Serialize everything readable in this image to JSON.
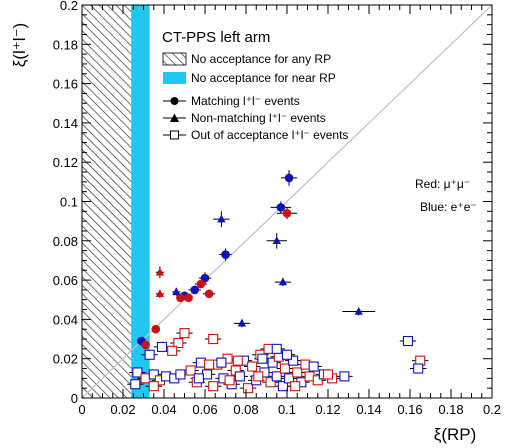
{
  "chart_data": {
    "type": "scatter",
    "title": "CT-PPS left arm",
    "xlabel": "ξ(RP)",
    "ylabel": "ξ(l⁺l⁻)",
    "xlim": [
      0,
      0.2
    ],
    "ylim": [
      0,
      0.2
    ],
    "x_ticks": [
      "0",
      "0.02",
      "0.04",
      "0.06",
      "0.08",
      "0.1",
      "0.12",
      "0.14",
      "0.16",
      "0.18",
      "0.2"
    ],
    "y_ticks": [
      "0",
      "0.02",
      "0.04",
      "0.06",
      "0.08",
      "0.1",
      "0.12",
      "0.14",
      "0.16",
      "0.18",
      "0.2"
    ],
    "grid": false,
    "diagonal_reference": true,
    "bands": [
      {
        "label": "No acceptance for any RP",
        "x_range": [
          0,
          0.024
        ],
        "style": "hatched"
      },
      {
        "label": "No acceptance for near RP",
        "x_range": [
          0.024,
          0.033
        ],
        "style": "filled",
        "color": "#1ec8f0"
      }
    ],
    "legend": {
      "position": "top-left",
      "entries": [
        {
          "label": "No acceptance for any RP",
          "marker": "hatch"
        },
        {
          "label": "No acceptance for near RP",
          "marker": "cyan-box"
        },
        {
          "label": "Matching l⁺l⁻ events",
          "marker": "circle"
        },
        {
          "label": "Non-matching l⁺l⁻ events",
          "marker": "triangle"
        },
        {
          "label": "Out of acceptance l⁺l⁻ events",
          "marker": "open-square"
        }
      ]
    },
    "annotations": {
      "red": "Red: μ⁺μ⁻",
      "blue": "Blue: e⁺e⁻"
    },
    "colors": {
      "red": "#cc1111",
      "blue": "#1111bb",
      "cyan": "#1ec8f0",
      "diagonal": "#c0c0c0"
    },
    "series": [
      {
        "name": "Matching l⁺l⁻ events",
        "marker": "circle",
        "points": [
          {
            "x": 0.101,
            "y": 0.112,
            "ex": 0.004,
            "ey": 0.004,
            "c": "blue"
          },
          {
            "x": 0.097,
            "y": 0.097,
            "ex": 0.005,
            "ey": 0.003,
            "c": "blue"
          },
          {
            "x": 0.1,
            "y": 0.094,
            "ex": 0.005,
            "ey": 0.003,
            "c": "red"
          },
          {
            "x": 0.07,
            "y": 0.073,
            "ex": 0.003,
            "ey": 0.003,
            "c": "blue"
          },
          {
            "x": 0.06,
            "y": 0.061,
            "ex": 0.003,
            "ey": 0.003,
            "c": "blue"
          },
          {
            "x": 0.062,
            "y": 0.053,
            "ex": 0.003,
            "ey": 0.002,
            "c": "red"
          },
          {
            "x": 0.055,
            "y": 0.055,
            "ex": 0.003,
            "ey": 0.002,
            "c": "blue"
          },
          {
            "x": 0.058,
            "y": 0.058,
            "ex": 0.003,
            "ey": 0.002,
            "c": "red"
          },
          {
            "x": 0.05,
            "y": 0.052,
            "ex": 0.002,
            "ey": 0.002,
            "c": "blue"
          },
          {
            "x": 0.048,
            "y": 0.051,
            "ex": 0.002,
            "ey": 0.002,
            "c": "red"
          },
          {
            "x": 0.052,
            "y": 0.051,
            "ex": 0.002,
            "ey": 0.002,
            "c": "red"
          },
          {
            "x": 0.036,
            "y": 0.035,
            "ex": 0.002,
            "ey": 0.002,
            "c": "red"
          },
          {
            "x": 0.029,
            "y": 0.029,
            "ex": 0.002,
            "ey": 0.002,
            "c": "blue"
          },
          {
            "x": 0.031,
            "y": 0.027,
            "ex": 0.002,
            "ey": 0.002,
            "c": "red"
          }
        ]
      },
      {
        "name": "Non-matching l⁺l⁻ events",
        "marker": "triangle",
        "points": [
          {
            "x": 0.068,
            "y": 0.091,
            "ex": 0.004,
            "ey": 0.004,
            "c": "blue"
          },
          {
            "x": 0.095,
            "y": 0.08,
            "ex": 0.005,
            "ey": 0.004,
            "c": "blue"
          },
          {
            "x": 0.038,
            "y": 0.064,
            "ex": 0.002,
            "ey": 0.003,
            "c": "red"
          },
          {
            "x": 0.038,
            "y": 0.053,
            "ex": 0.002,
            "ey": 0.002,
            "c": "red"
          },
          {
            "x": 0.046,
            "y": 0.054,
            "ex": 0.002,
            "ey": 0.002,
            "c": "blue"
          },
          {
            "x": 0.098,
            "y": 0.059,
            "ex": 0.004,
            "ey": 0.002,
            "c": "blue"
          },
          {
            "x": 0.078,
            "y": 0.038,
            "ex": 0.004,
            "ey": 0.002,
            "c": "blue"
          },
          {
            "x": 0.135,
            "y": 0.044,
            "ex": 0.008,
            "ey": 0.002,
            "c": "blue"
          }
        ]
      },
      {
        "name": "Out of acceptance l⁺l⁻ events",
        "marker": "open-square",
        "points": [
          {
            "x": 0.033,
            "y": 0.022,
            "c": "blue"
          },
          {
            "x": 0.039,
            "y": 0.026,
            "c": "blue"
          },
          {
            "x": 0.047,
            "y": 0.028,
            "c": "red"
          },
          {
            "x": 0.044,
            "y": 0.024,
            "c": "red"
          },
          {
            "x": 0.05,
            "y": 0.033,
            "c": "red"
          },
          {
            "x": 0.064,
            "y": 0.03,
            "c": "red"
          },
          {
            "x": 0.027,
            "y": 0.013,
            "c": "blue"
          },
          {
            "x": 0.031,
            "y": 0.01,
            "c": "red"
          },
          {
            "x": 0.035,
            "y": 0.012,
            "c": "blue"
          },
          {
            "x": 0.038,
            "y": 0.009,
            "c": "red"
          },
          {
            "x": 0.041,
            "y": 0.011,
            "c": "blue"
          },
          {
            "x": 0.045,
            "y": 0.01,
            "c": "blue"
          },
          {
            "x": 0.026,
            "y": 0.007,
            "c": "blue"
          },
          {
            "x": 0.035,
            "y": 0.006,
            "c": "red"
          },
          {
            "x": 0.048,
            "y": 0.012,
            "c": "blue"
          },
          {
            "x": 0.053,
            "y": 0.014,
            "c": "red"
          },
          {
            "x": 0.056,
            "y": 0.008,
            "c": "red"
          },
          {
            "x": 0.058,
            "y": 0.018,
            "c": "blue"
          },
          {
            "x": 0.061,
            "y": 0.012,
            "c": "blue"
          },
          {
            "x": 0.064,
            "y": 0.006,
            "c": "red"
          },
          {
            "x": 0.066,
            "y": 0.017,
            "c": "red"
          },
          {
            "x": 0.069,
            "y": 0.01,
            "c": "blue"
          },
          {
            "x": 0.071,
            "y": 0.02,
            "c": "red"
          },
          {
            "x": 0.073,
            "y": 0.007,
            "c": "blue"
          },
          {
            "x": 0.075,
            "y": 0.014,
            "c": "red"
          },
          {
            "x": 0.077,
            "y": 0.011,
            "c": "blue"
          },
          {
            "x": 0.079,
            "y": 0.019,
            "c": "blue"
          },
          {
            "x": 0.081,
            "y": 0.005,
            "c": "red"
          },
          {
            "x": 0.083,
            "y": 0.016,
            "c": "red"
          },
          {
            "x": 0.085,
            "y": 0.009,
            "c": "blue"
          },
          {
            "x": 0.087,
            "y": 0.022,
            "c": "red"
          },
          {
            "x": 0.089,
            "y": 0.013,
            "c": "blue"
          },
          {
            "x": 0.091,
            "y": 0.025,
            "c": "red"
          },
          {
            "x": 0.092,
            "y": 0.008,
            "c": "red"
          },
          {
            "x": 0.093,
            "y": 0.018,
            "c": "blue"
          },
          {
            "x": 0.095,
            "y": 0.011,
            "c": "blue"
          },
          {
            "x": 0.096,
            "y": 0.021,
            "c": "red"
          },
          {
            "x": 0.098,
            "y": 0.006,
            "c": "blue"
          },
          {
            "x": 0.099,
            "y": 0.015,
            "c": "red"
          },
          {
            "x": 0.101,
            "y": 0.01,
            "c": "blue"
          },
          {
            "x": 0.103,
            "y": 0.019,
            "c": "blue"
          },
          {
            "x": 0.105,
            "y": 0.013,
            "c": "red"
          },
          {
            "x": 0.107,
            "y": 0.008,
            "c": "blue"
          },
          {
            "x": 0.109,
            "y": 0.017,
            "c": "red"
          },
          {
            "x": 0.111,
            "y": 0.011,
            "c": "red"
          },
          {
            "x": 0.113,
            "y": 0.016,
            "c": "blue"
          },
          {
            "x": 0.115,
            "y": 0.009,
            "c": "red"
          },
          {
            "x": 0.118,
            "y": 0.012,
            "c": "blue"
          },
          {
            "x": 0.122,
            "y": 0.01,
            "c": "red"
          },
          {
            "x": 0.128,
            "y": 0.011,
            "c": "blue"
          },
          {
            "x": 0.095,
            "y": 0.025,
            "c": "blue"
          },
          {
            "x": 0.088,
            "y": 0.02,
            "c": "blue"
          },
          {
            "x": 0.076,
            "y": 0.019,
            "c": "red"
          },
          {
            "x": 0.068,
            "y": 0.018,
            "c": "blue"
          },
          {
            "x": 0.062,
            "y": 0.017,
            "c": "red"
          },
          {
            "x": 0.159,
            "y": 0.029,
            "c": "blue"
          },
          {
            "x": 0.165,
            "y": 0.019,
            "c": "red"
          },
          {
            "x": 0.164,
            "y": 0.015,
            "c": "blue"
          },
          {
            "x": 0.12,
            "y": 0.012,
            "c": "red"
          },
          {
            "x": 0.086,
            "y": 0.011,
            "c": "red"
          },
          {
            "x": 0.072,
            "y": 0.009,
            "c": "red"
          },
          {
            "x": 0.057,
            "y": 0.01,
            "c": "blue"
          },
          {
            "x": 0.1,
            "y": 0.022,
            "c": "blue"
          },
          {
            "x": 0.104,
            "y": 0.006,
            "c": "red"
          }
        ]
      }
    ]
  }
}
